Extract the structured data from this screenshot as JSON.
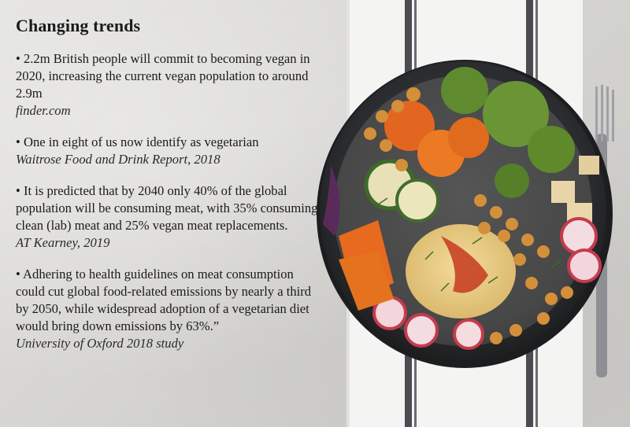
{
  "title": "Changing trends",
  "facts": [
    {
      "text": "2.2m British people will commit to becoming vegan in 2020, increasing the current vegan population to around 2.9m",
      "source": "finder.com"
    },
    {
      "text": "One in eight of us now identify as vegetarian",
      "source": "Waitrose Food and Drink Report, 2018"
    },
    {
      "text": "It is predicted that by 2040 only 40% of the global population will be consuming meat, with 35% consuming clean (lab) meat and 25% vegan meat replacements.",
      "source": "AT Kearney, 2019"
    },
    {
      "text": "Adhering to health guidelines on meat consumption could cut global food-related emissions by nearly a third by 2050, while widespread adoption of a vegetarian diet would bring down emissions by 63%.”",
      "source": "University of Oxford 2018 study"
    }
  ]
}
